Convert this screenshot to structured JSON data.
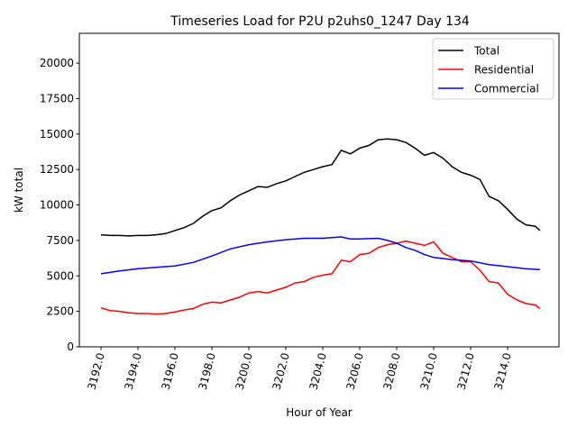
{
  "chart_data": {
    "type": "line",
    "title": "Timeseries Load for P2U p2uhs0_1247  Day 134",
    "xlabel": "Hour of Year",
    "ylabel": "kW total",
    "xlim": [
      3190.83,
      3216.78
    ],
    "ylim": [
      0,
      22100
    ],
    "xticks": [
      3192,
      3194,
      3196,
      3198,
      3200,
      3202,
      3204,
      3206,
      3208,
      3210,
      3212,
      3214
    ],
    "xtick_labels": [
      "3192.0",
      "3194.0",
      "3196.0",
      "3198.0",
      "3200.0",
      "3202.0",
      "3204.0",
      "3206.0",
      "3208.0",
      "3210.0",
      "3212.0",
      "3214.0"
    ],
    "yticks": [
      0,
      2500,
      5000,
      7500,
      10000,
      12500,
      15000,
      17500,
      20000
    ],
    "ytick_labels": [
      "0",
      "2500",
      "5000",
      "7500",
      "10000",
      "12500",
      "15000",
      "17500",
      "20000"
    ],
    "grid": false,
    "legend_position": "top-right",
    "series": [
      {
        "name": "Total",
        "color": "#000000",
        "points": [
          [
            3192,
            7900
          ],
          [
            3192.5,
            7850
          ],
          [
            3193,
            7850
          ],
          [
            3193.5,
            7820
          ],
          [
            3194,
            7850
          ],
          [
            3194.5,
            7850
          ],
          [
            3195,
            7900
          ],
          [
            3195.5,
            7980
          ],
          [
            3196,
            8200
          ],
          [
            3196.5,
            8400
          ],
          [
            3197,
            8700
          ],
          [
            3197.5,
            9200
          ],
          [
            3198,
            9600
          ],
          [
            3198.5,
            9800
          ],
          [
            3199,
            10300
          ],
          [
            3199.5,
            10700
          ],
          [
            3200,
            11000
          ],
          [
            3200.5,
            11300
          ],
          [
            3201,
            11250
          ],
          [
            3201.5,
            11500
          ],
          [
            3202,
            11700
          ],
          [
            3202.5,
            12000
          ],
          [
            3203,
            12300
          ],
          [
            3203.5,
            12500
          ],
          [
            3204,
            12700
          ],
          [
            3204.5,
            12850
          ],
          [
            3205,
            13850
          ],
          [
            3205.5,
            13600
          ],
          [
            3206,
            14000
          ],
          [
            3206.5,
            14200
          ],
          [
            3207,
            14600
          ],
          [
            3207.5,
            14650
          ],
          [
            3208,
            14600
          ],
          [
            3208.5,
            14400
          ],
          [
            3209,
            14000
          ],
          [
            3209.5,
            13500
          ],
          [
            3210,
            13700
          ],
          [
            3210.5,
            13300
          ],
          [
            3211,
            12700
          ],
          [
            3211.5,
            12300
          ],
          [
            3212,
            12100
          ],
          [
            3212.5,
            11800
          ],
          [
            3213,
            10600
          ],
          [
            3213.5,
            10300
          ],
          [
            3214,
            9700
          ],
          [
            3214.5,
            9000
          ],
          [
            3215,
            8600
          ],
          [
            3215.5,
            8500
          ],
          [
            3215.75,
            8200
          ]
        ]
      },
      {
        "name": "Residential",
        "color": "#ff0000",
        "points": [
          [
            3192,
            2750
          ],
          [
            3192.5,
            2550
          ],
          [
            3193,
            2500
          ],
          [
            3193.5,
            2400
          ],
          [
            3194,
            2350
          ],
          [
            3194.5,
            2350
          ],
          [
            3195,
            2300
          ],
          [
            3195.5,
            2350
          ],
          [
            3196,
            2450
          ],
          [
            3196.5,
            2600
          ],
          [
            3197,
            2700
          ],
          [
            3197.5,
            3000
          ],
          [
            3198,
            3150
          ],
          [
            3198.5,
            3100
          ],
          [
            3199,
            3300
          ],
          [
            3199.5,
            3500
          ],
          [
            3200,
            3800
          ],
          [
            3200.5,
            3900
          ],
          [
            3201,
            3800
          ],
          [
            3201.5,
            4000
          ],
          [
            3202,
            4200
          ],
          [
            3202.5,
            4500
          ],
          [
            3203,
            4600
          ],
          [
            3203.5,
            4900
          ],
          [
            3204,
            5050
          ],
          [
            3204.5,
            5150
          ],
          [
            3205,
            6100
          ],
          [
            3205.5,
            6000
          ],
          [
            3206,
            6500
          ],
          [
            3206.5,
            6600
          ],
          [
            3207,
            7000
          ],
          [
            3207.5,
            7200
          ],
          [
            3208,
            7300
          ],
          [
            3208.5,
            7450
          ],
          [
            3209,
            7300
          ],
          [
            3209.5,
            7150
          ],
          [
            3210,
            7400
          ],
          [
            3210.5,
            6600
          ],
          [
            3211,
            6300
          ],
          [
            3211.5,
            6000
          ],
          [
            3212,
            6000
          ],
          [
            3212.5,
            5400
          ],
          [
            3213,
            4600
          ],
          [
            3213.5,
            4500
          ],
          [
            3214,
            3700
          ],
          [
            3214.5,
            3300
          ],
          [
            3215,
            3050
          ],
          [
            3215.5,
            2950
          ],
          [
            3215.75,
            2700
          ]
        ]
      },
      {
        "name": "Commercial",
        "color": "#0000ff",
        "points": [
          [
            3192,
            5150
          ],
          [
            3193,
            5350
          ],
          [
            3194,
            5500
          ],
          [
            3195,
            5600
          ],
          [
            3196,
            5700
          ],
          [
            3197,
            5950
          ],
          [
            3198,
            6400
          ],
          [
            3199,
            6900
          ],
          [
            3200,
            7200
          ],
          [
            3201,
            7400
          ],
          [
            3202,
            7550
          ],
          [
            3203,
            7650
          ],
          [
            3204,
            7650
          ],
          [
            3205,
            7750
          ],
          [
            3205.5,
            7600
          ],
          [
            3206,
            7600
          ],
          [
            3207,
            7650
          ],
          [
            3207.5,
            7500
          ],
          [
            3208,
            7300
          ],
          [
            3208.5,
            7000
          ],
          [
            3209,
            6800
          ],
          [
            3209.5,
            6500
          ],
          [
            3210,
            6300
          ],
          [
            3211,
            6150
          ],
          [
            3212,
            6050
          ],
          [
            3213,
            5800
          ],
          [
            3214,
            5650
          ],
          [
            3215,
            5500
          ],
          [
            3215.75,
            5450
          ]
        ]
      }
    ]
  }
}
